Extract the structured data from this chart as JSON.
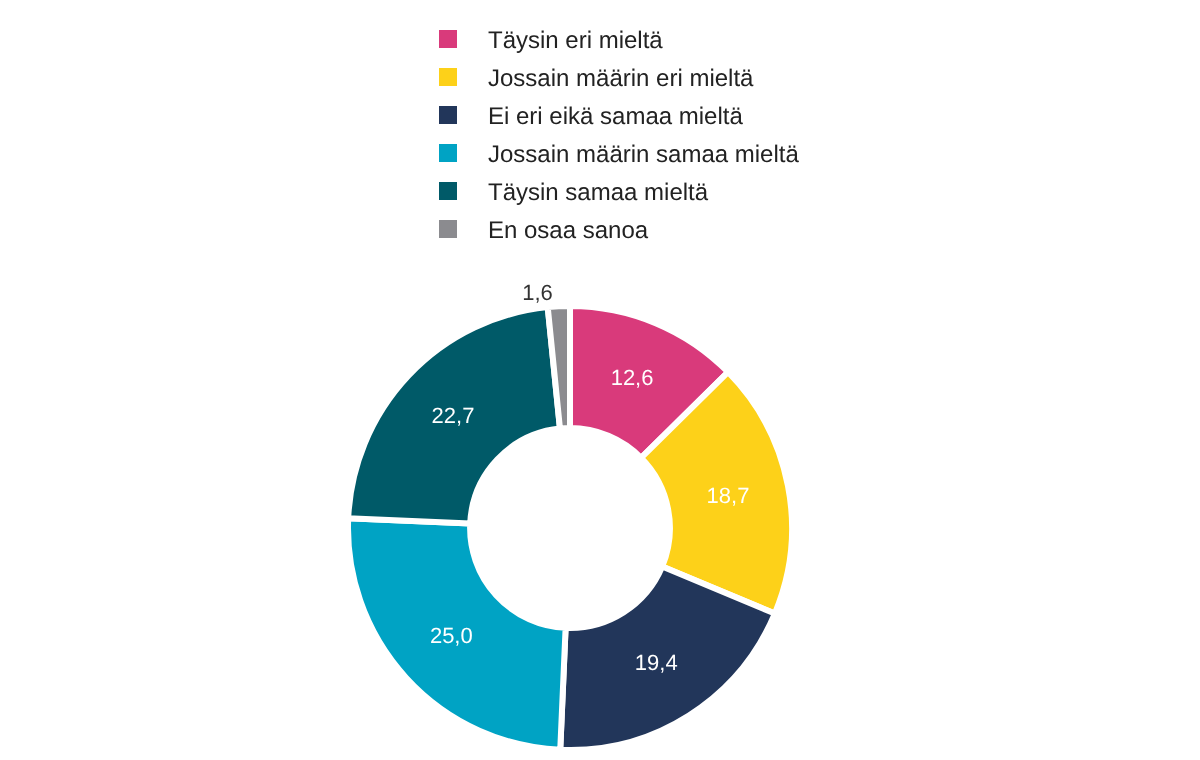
{
  "chart_data": {
    "type": "donut",
    "categories": [
      "Täysin eri mieltä",
      "Jossain määrin eri mieltä",
      "Ei eri eikä samaa mieltä",
      "Jossain määrin samaa mieltä",
      "Täysin samaa mieltä",
      "En osaa sanoa"
    ],
    "values": [
      12.6,
      18.7,
      19.4,
      25.0,
      22.7,
      1.6
    ],
    "colors": [
      "#d93a7b",
      "#fdd119",
      "#22365a",
      "#00a3c4",
      "#005a68",
      "#8b8b8f"
    ],
    "value_labels": [
      "12,6",
      "18,7",
      "19,4",
      "25,0",
      "22,7",
      "1,6"
    ],
    "legend": "top"
  }
}
